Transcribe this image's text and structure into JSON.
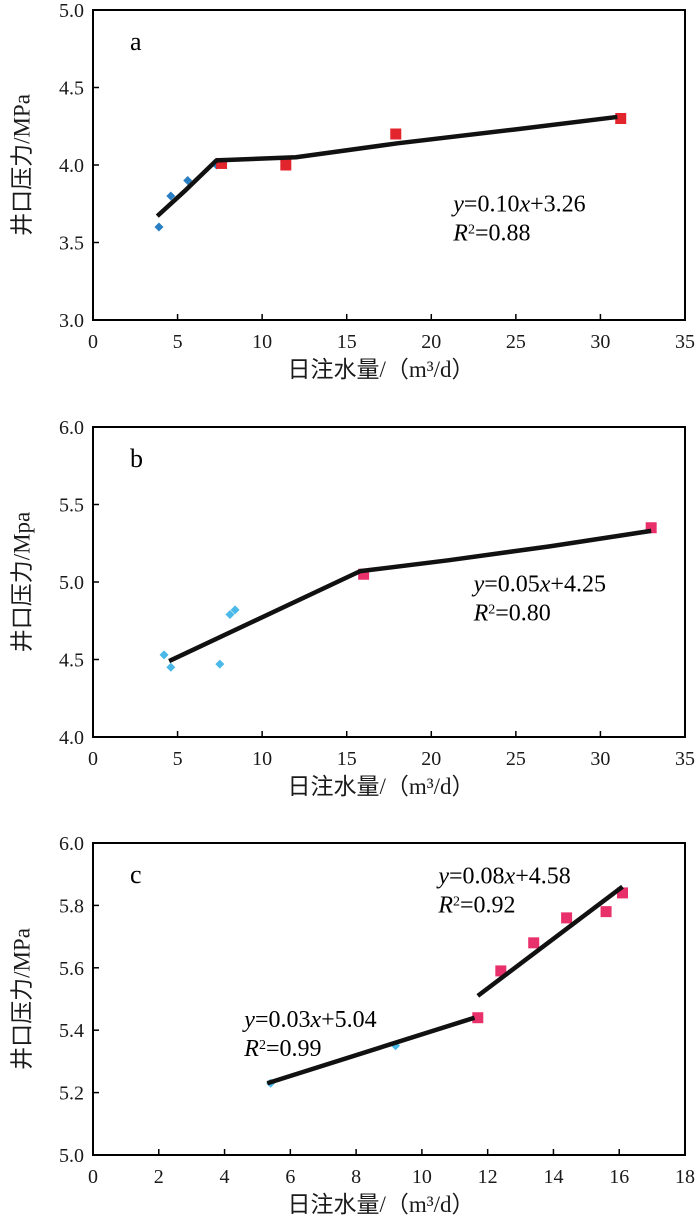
{
  "chart_data": [
    {
      "type": "scatter",
      "panel_label": "a",
      "xlabel": "日注水量/（m³/d）",
      "ylabel": "井口压力/MPa",
      "xlim": [
        0,
        35
      ],
      "ylim": [
        3.0,
        5.0
      ],
      "x_ticks": [
        0,
        5,
        10,
        15,
        20,
        25,
        30,
        35
      ],
      "y_ticks": [
        3.0,
        3.5,
        4.0,
        4.5,
        5.0
      ],
      "x_tick_labels": [
        "0",
        "5",
        "10",
        "15",
        "20",
        "25",
        "30",
        "35"
      ],
      "y_tick_labels": [
        "3.0",
        "3.5",
        "4.0",
        "4.5",
        "5.0"
      ],
      "series": [
        {
          "marker": "diamond",
          "color": "#2a7fc4",
          "points": [
            [
              3.9,
              3.6
            ],
            [
              4.6,
              3.8
            ],
            [
              5.6,
              3.9
            ],
            [
              7.3,
              4.0
            ]
          ]
        },
        {
          "marker": "square",
          "color": "#e2242c",
          "points": [
            [
              7.6,
              4.01
            ],
            [
              11.4,
              4.0
            ],
            [
              17.9,
              4.2
            ],
            [
              31.2,
              4.3
            ]
          ]
        }
      ],
      "fit_lines": [
        {
          "x": [
            3.8,
            5.5,
            7.3,
            12,
            18,
            25,
            31
          ],
          "y": [
            3.67,
            3.84,
            4.03,
            4.05,
            4.14,
            4.23,
            4.31
          ]
        }
      ],
      "annotations": [
        {
          "eq_y": "y",
          "eq_eq": "=0.10",
          "eq_x": "x",
          "eq_tail": "+3.26",
          "r_letter": "R",
          "r_sup": "2",
          "r_tail": "=0.88",
          "x": 21.3,
          "y": 3.7
        }
      ]
    },
    {
      "type": "scatter",
      "panel_label": "b",
      "xlabel": "日注水量/（m³/d）",
      "ylabel": "井口压力/Mpa",
      "xlim": [
        0,
        35
      ],
      "ylim": [
        4.0,
        6.0
      ],
      "x_ticks": [
        0,
        5,
        10,
        15,
        20,
        25,
        30,
        35
      ],
      "y_ticks": [
        4.0,
        4.5,
        5.0,
        5.5,
        6.0
      ],
      "x_tick_labels": [
        "0",
        "5",
        "10",
        "15",
        "20",
        "25",
        "30",
        "35"
      ],
      "y_tick_labels": [
        "4.0",
        "4.5",
        "5.0",
        "5.5",
        "6.0"
      ],
      "series": [
        {
          "marker": "diamond",
          "color": "#4ab8e8",
          "points": [
            [
              4.2,
              4.53
            ],
            [
              4.6,
              4.45
            ],
            [
              7.5,
              4.47
            ],
            [
              8.1,
              4.79
            ],
            [
              8.4,
              4.82
            ]
          ]
        },
        {
          "marker": "square",
          "color": "#e8306a",
          "points": [
            [
              16.0,
              5.05
            ],
            [
              33.0,
              5.35
            ]
          ]
        }
      ],
      "fit_lines": [
        {
          "x": [
            4.5,
            15.8,
            21,
            27,
            33
          ],
          "y": [
            4.49,
            5.07,
            5.14,
            5.23,
            5.33
          ]
        }
      ],
      "annotations": [
        {
          "eq_y": "y",
          "eq_eq": "=0.05",
          "eq_x": "x",
          "eq_tail": "+4.25",
          "r_letter": "R",
          "r_sup": "2",
          "r_tail": "=0.80",
          "x": 22.5,
          "y": 4.94
        }
      ]
    },
    {
      "type": "scatter",
      "panel_label": "c",
      "xlabel": "日注水量/（m³/d）",
      "ylabel": "井口压力/MPa",
      "xlim": [
        0,
        18
      ],
      "ylim": [
        5.0,
        6.0
      ],
      "x_ticks": [
        0,
        2,
        4,
        6,
        8,
        10,
        12,
        14,
        16,
        18
      ],
      "y_ticks": [
        5.0,
        5.2,
        5.4,
        5.6,
        5.8,
        6.0
      ],
      "x_tick_labels": [
        "0",
        "2",
        "4",
        "6",
        "8",
        "10",
        "12",
        "14",
        "16",
        "18"
      ],
      "y_tick_labels": [
        "5.0",
        "5.2",
        "5.4",
        "5.6",
        "5.8",
        "6.0"
      ],
      "series": [
        {
          "marker": "diamond",
          "color": "#4ab8e8",
          "points": [
            [
              5.4,
              5.23
            ],
            [
              9.2,
              5.35
            ]
          ]
        },
        {
          "marker": "square",
          "color": "#e8306a",
          "points": [
            [
              11.7,
              5.44
            ],
            [
              12.4,
              5.59
            ],
            [
              13.4,
              5.68
            ],
            [
              14.4,
              5.76
            ],
            [
              15.6,
              5.78
            ],
            [
              16.1,
              5.84
            ]
          ]
        }
      ],
      "fit_lines": [
        {
          "x": [
            5.3,
            11.6
          ],
          "y": [
            5.23,
            5.44
          ]
        },
        {
          "x": [
            11.7,
            16.1
          ],
          "y": [
            5.51,
            5.86
          ]
        }
      ],
      "annotations": [
        {
          "eq_y": "y",
          "eq_eq": "=0.08",
          "eq_x": "x",
          "eq_tail": "+4.58",
          "r_letter": "R",
          "r_sup": "2",
          "r_tail": "=0.92",
          "x": 10.5,
          "y": 5.87
        },
        {
          "eq_y": "y",
          "eq_eq": "=0.03",
          "eq_x": "x",
          "eq_tail": "+5.04",
          "r_letter": "R",
          "r_sup": "2",
          "r_tail": "=0.99",
          "x": 4.6,
          "y": 5.41
        }
      ]
    }
  ]
}
